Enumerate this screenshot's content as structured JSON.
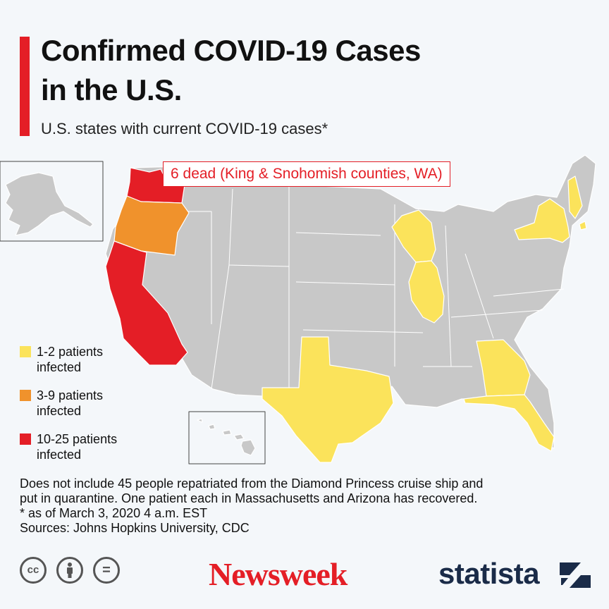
{
  "header": {
    "title_line1": "Confirmed COVID-19 Cases",
    "title_line2": "in the U.S.",
    "subtitle": "U.S. states with current COVID-19 cases*"
  },
  "map": {
    "callout": "6 dead (King & Snohomish counties, WA)",
    "colors": {
      "none": "#c8c8c8",
      "low": "#fbe35b",
      "mid": "#f0922c",
      "high": "#e41e26"
    },
    "states_by_category": {
      "1-2": [
        "Wisconsin",
        "Illinois",
        "Texas",
        "Georgia",
        "Florida",
        "New York",
        "New Hampshire",
        "Rhode Island"
      ],
      "3-9": [
        "Oregon"
      ],
      "10-25": [
        "Washington",
        "California"
      ]
    }
  },
  "legend": [
    {
      "line1": "1-2 patients",
      "line2": "infected",
      "color": "#fbe35b"
    },
    {
      "line1": "3-9 patients",
      "line2": "infected",
      "color": "#f0922c"
    },
    {
      "line1": "10-25 patients",
      "line2": "infected",
      "color": "#e41e26"
    }
  ],
  "notes": {
    "line1": "Does not include 45 people repatriated from the Diamond Princess cruise ship and",
    "line2": "put in quarantine. One patient each in Massachusetts and Arizona has recovered.",
    "line3": "* as of March 3, 2020 4 a.m. EST",
    "line4": "Sources: Johns Hopkins University, CDC"
  },
  "footer": {
    "cc_icons": [
      "cc-icon",
      "attribution-icon",
      "no-derivatives-icon"
    ],
    "cc_labels": [
      "cc",
      "="
    ],
    "brand1": "Newsweek",
    "brand2": "statista"
  }
}
